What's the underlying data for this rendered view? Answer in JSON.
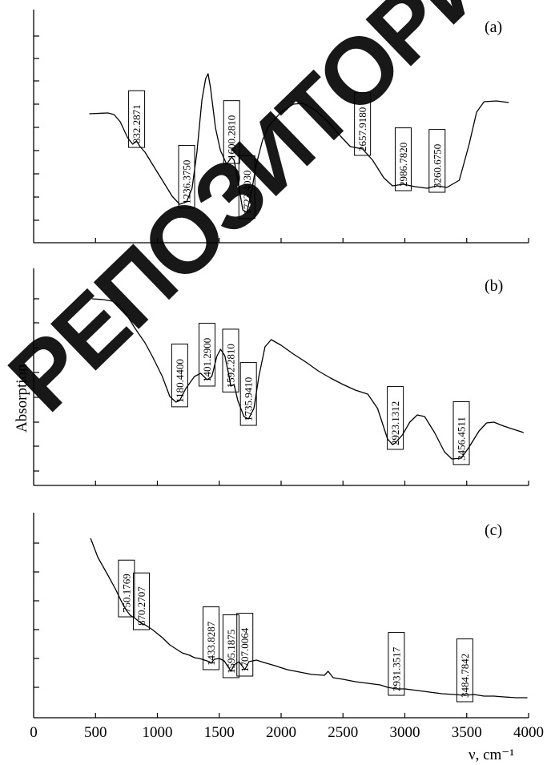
{
  "chart_data": {
    "type": "line",
    "ylabel": "Absorption",
    "xlabel": "ν, cm⁻¹",
    "x_ticks": [
      "0",
      "500",
      "1000",
      "1500",
      "2000",
      "2500",
      "3000",
      "3500",
      "4000"
    ],
    "xlim": [
      0,
      4000
    ],
    "watermark": "РЕПОЗИТОРИЙ",
    "panels": [
      {
        "label": "(a)",
        "series": [
          {
            "points": [
              [
                450,
                142
              ],
              [
                600,
                141
              ],
              [
                650,
                143
              ],
              [
                700,
                152
              ],
              [
                760,
                172
              ],
              [
                800,
                180
              ],
              [
                832,
                176
              ],
              [
                860,
                183
              ],
              [
                900,
                190
              ],
              [
                960,
                205
              ],
              [
                1040,
                225
              ],
              [
                1120,
                245
              ],
              [
                1180,
                255
              ],
              [
                1236,
                252
              ],
              [
                1280,
                235
              ],
              [
                1320,
                190
              ],
              [
                1360,
                125
              ],
              [
                1390,
                98
              ],
              [
                1410,
                92
              ],
              [
                1430,
                110
              ],
              [
                1470,
                160
              ],
              [
                1510,
                188
              ],
              [
                1560,
                205
              ],
              [
                1600,
                196
              ],
              [
                1620,
                200
              ],
              [
                1650,
                225
              ],
              [
                1690,
                262
              ],
              [
                1723,
                265
              ],
              [
                1760,
                240
              ],
              [
                1800,
                205
              ],
              [
                1850,
                175
              ],
              [
                1900,
                157
              ],
              [
                2000,
                140
              ],
              [
                2100,
                130
              ],
              [
                2180,
                129
              ],
              [
                2280,
                138
              ],
              [
                2380,
                152
              ],
              [
                2480,
                170
              ],
              [
                2560,
                183
              ],
              [
                2658,
                186
              ],
              [
                2740,
                200
              ],
              [
                2830,
                222
              ],
              [
                2900,
                232
              ],
              [
                2987,
                230
              ],
              [
                3080,
                233
              ],
              [
                3180,
                235
              ],
              [
                3260,
                232
              ],
              [
                3340,
                234
              ],
              [
                3440,
                225
              ],
              [
                3520,
                180
              ],
              [
                3580,
                140
              ],
              [
                3640,
                127
              ],
              [
                3740,
                126
              ],
              [
                3840,
                128
              ]
            ],
            "peaks": [
              "832.2871",
              "1236.3750",
              "1600.2810",
              "1723.4030",
              "2657.9180",
              "2986.7820",
              "3260.6750"
            ]
          }
        ]
      },
      {
        "label": "(b)",
        "series": [
          {
            "points": [
              [
                470,
                373
              ],
              [
                560,
                374
              ],
              [
                640,
                376
              ],
              [
                700,
                382
              ],
              [
                760,
                395
              ],
              [
                820,
                410
              ],
              [
                900,
                428
              ],
              [
                960,
                445
              ],
              [
                1040,
                470
              ],
              [
                1100,
                495
              ],
              [
                1150,
                502
              ],
              [
                1180,
                500
              ],
              [
                1230,
                485
              ],
              [
                1300,
                470
              ],
              [
                1350,
                466
              ],
              [
                1401,
                474
              ],
              [
                1440,
                470
              ],
              [
                1480,
                445
              ],
              [
                1510,
                436
              ],
              [
                1545,
                444
              ],
              [
                1580,
                470
              ],
              [
                1593,
                482
              ],
              [
                1620,
                480
              ],
              [
                1650,
                500
              ],
              [
                1700,
                520
              ],
              [
                1736,
                523
              ],
              [
                1780,
                510
              ],
              [
                1820,
                470
              ],
              [
                1870,
                433
              ],
              [
                1920,
                424
              ],
              [
                2000,
                431
              ],
              [
                2100,
                442
              ],
              [
                2200,
                452
              ],
              [
                2300,
                463
              ],
              [
                2400,
                472
              ],
              [
                2500,
                480
              ],
              [
                2600,
                487
              ],
              [
                2700,
                492
              ],
              [
                2780,
                510
              ],
              [
                2860,
                548
              ],
              [
                2900,
                555
              ],
              [
                2923,
                553
              ],
              [
                2980,
                543
              ],
              [
                3040,
                527
              ],
              [
                3100,
                518
              ],
              [
                3160,
                520
              ],
              [
                3240,
                540
              ],
              [
                3320,
                564
              ],
              [
                3380,
                573
              ],
              [
                3456,
                572
              ],
              [
                3520,
                558
              ],
              [
                3600,
                538
              ],
              [
                3660,
                528
              ],
              [
                3720,
                527
              ],
              [
                3800,
                532
              ],
              [
                3900,
                537
              ],
              [
                3960,
                540
              ]
            ],
            "peaks": [
              "1180.4400",
              "1401.2900",
              "1592.2810",
              "1735.9410",
              "2923.1312",
              "3456.4511"
            ]
          }
        ]
      },
      {
        "label": "(c)",
        "series": [
          {
            "points": [
              [
                460,
                672
              ],
              [
                520,
                696
              ],
              [
                600,
                718
              ],
              [
                660,
                735
              ],
              [
                720,
                754
              ],
              [
                750,
                762
              ],
              [
                780,
                768
              ],
              [
                820,
                772
              ],
              [
                870,
                778
              ],
              [
                900,
                780
              ],
              [
                960,
                786
              ],
              [
                1040,
                796
              ],
              [
                1100,
                805
              ],
              [
                1160,
                811
              ],
              [
                1200,
                815
              ],
              [
                1260,
                818
              ],
              [
                1300,
                821
              ],
              [
                1340,
                822
              ],
              [
                1380,
                824
              ],
              [
                1420,
                826
              ],
              [
                1434,
                828
              ],
              [
                1460,
                823
              ],
              [
                1500,
                822
              ],
              [
                1540,
                825
              ],
              [
                1595,
                838
              ],
              [
                1620,
                830
              ],
              [
                1660,
                826
              ],
              [
                1707,
                836
              ],
              [
                1740,
                826
              ],
              [
                1800,
                824
              ],
              [
                1860,
                827
              ],
              [
                1950,
                831
              ],
              [
                2050,
                836
              ],
              [
                2150,
                839
              ],
              [
                2250,
                842
              ],
              [
                2350,
                843
              ],
              [
                2380,
                838
              ],
              [
                2420,
                846
              ],
              [
                2500,
                848
              ],
              [
                2600,
                851
              ],
              [
                2700,
                853
              ],
              [
                2800,
                855
              ],
              [
                2860,
                858
              ],
              [
                2931,
                860
              ],
              [
                3000,
                860
              ],
              [
                3100,
                862
              ],
              [
                3200,
                864
              ],
              [
                3300,
                866
              ],
              [
                3400,
                867
              ],
              [
                3485,
                868
              ],
              [
                3560,
                867
              ],
              [
                3640,
                869
              ],
              [
                3720,
                869
              ],
              [
                3800,
                870
              ],
              [
                3900,
                871
              ],
              [
                3990,
                871
              ]
            ],
            "peaks": [
              "750.1769",
              "870.2707",
              "1433.8287",
              "1595.1875",
              "1707.0064",
              "2931.3517",
              "3484.7842"
            ]
          }
        ]
      }
    ]
  }
}
